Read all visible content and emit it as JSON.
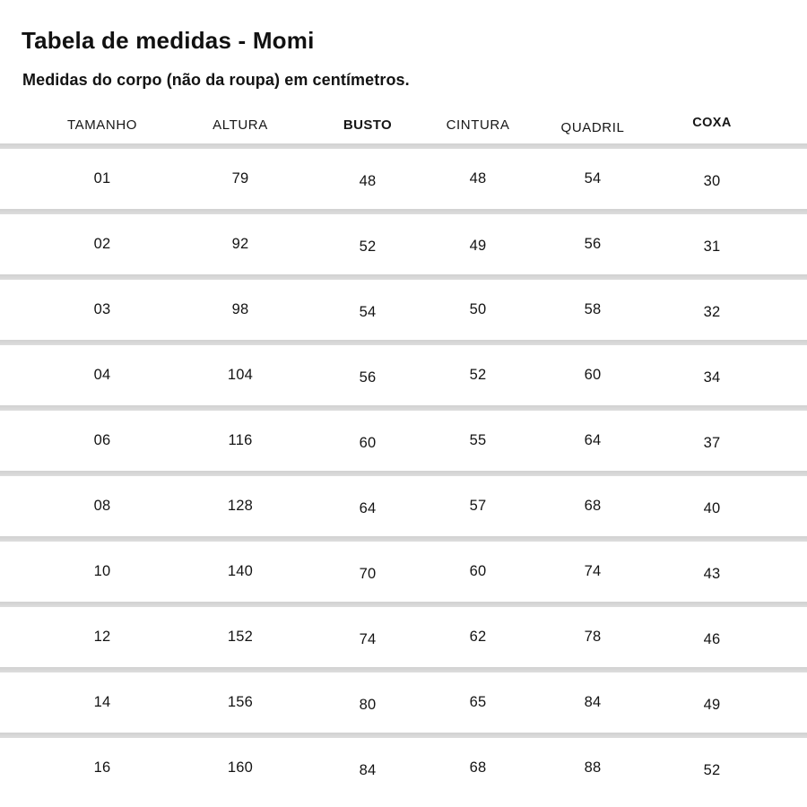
{
  "page": {
    "title": "Tabela de medidas - Momi",
    "subtitle": "Medidas do corpo (não da roupa) em centímetros."
  },
  "table": {
    "columns": [
      {
        "label": "TAMANHO",
        "strong": false
      },
      {
        "label": "ALTURA",
        "strong": false
      },
      {
        "label": "BUSTO",
        "strong": true
      },
      {
        "label": "CINTURA",
        "strong": false
      },
      {
        "label": "QUADRIL",
        "strong": false
      },
      {
        "label": "COXA",
        "strong": true
      }
    ],
    "rows": [
      [
        "01",
        "79",
        "48",
        "48",
        "54",
        "30"
      ],
      [
        "02",
        "92",
        "52",
        "49",
        "56",
        "31"
      ],
      [
        "03",
        "98",
        "54",
        "50",
        "58",
        "32"
      ],
      [
        "04",
        "104",
        "56",
        "52",
        "60",
        "34"
      ],
      [
        "06",
        "116",
        "60",
        "55",
        "64",
        "37"
      ],
      [
        "08",
        "128",
        "64",
        "57",
        "68",
        "40"
      ],
      [
        "10",
        "140",
        "70",
        "60",
        "74",
        "43"
      ],
      [
        "12",
        "152",
        "74",
        "62",
        "78",
        "46"
      ],
      [
        "14",
        "156",
        "80",
        "65",
        "84",
        "49"
      ],
      [
        "16",
        "160",
        "84",
        "68",
        "88",
        "52"
      ]
    ]
  },
  "colors": {
    "background": "#ffffff",
    "text": "#111111",
    "divider": "#d7d7d7"
  }
}
